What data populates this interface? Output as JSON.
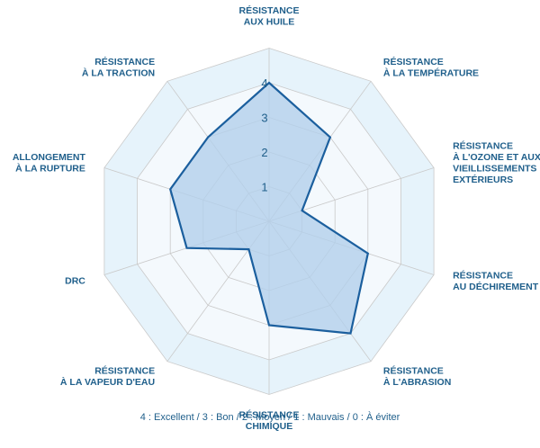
{
  "chart_data": {
    "type": "radar",
    "categories": [
      [
        "RÉSISTANCE",
        "AUX HUILE"
      ],
      [
        "RÉSISTANCE",
        "À LA TEMPÉRATURE"
      ],
      [
        "RÉSISTANCE",
        "À L'OZONE ET AUX",
        "VIEILLISSEMENTS",
        "EXTÉRIEURS"
      ],
      [
        "RÉSISTANCE",
        "AU DÉCHIREMENT"
      ],
      [
        "RÉSISTANCE",
        "À L'ABRASION"
      ],
      [
        "RÉSISTANCE",
        "CHIMIQUE"
      ],
      [
        "RÉSISTANCE",
        "À LA VAPEUR D'EAU"
      ],
      [
        "DRC"
      ],
      [
        "ALLONGEMENT",
        "À LA RUPTURE"
      ],
      [
        "RÉSISTANCE",
        "À LA TRACTION"
      ]
    ],
    "values": [
      4,
      3,
      1,
      3,
      4,
      3,
      1,
      2.5,
      3,
      3
    ],
    "ticks": [
      "1",
      "2",
      "3",
      "4"
    ],
    "rmax": 5,
    "legend_text": "4 : Excellent / 3 : Bon / 2 :  Moyen / 1 : Mauvais / 0 : À éviter",
    "colors": {
      "ring_outer": "#e6f3fb",
      "ring_inner": "#f4f9fd",
      "grid": "#c9c9c9",
      "series_fill": "#b3cfeb",
      "series_line": "#1b5f9e",
      "label": "#1f5f8b"
    }
  }
}
